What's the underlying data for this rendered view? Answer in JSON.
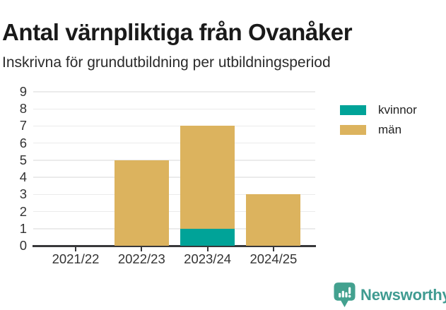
{
  "header": {
    "title": "Antal värnpliktiga från Ovanåker",
    "subtitle": "Inskrivna för grundutbildning per utbildningsperiod"
  },
  "chart_data": {
    "type": "bar",
    "stacked": true,
    "title": "Antal värnpliktiga från Ovanåker",
    "subtitle": "Inskrivna för grundutbildning per utbildningsperiod",
    "categories": [
      "2021/22",
      "2022/23",
      "2023/24",
      "2024/25"
    ],
    "series": [
      {
        "name": "kvinnor",
        "color": "#00A398",
        "values": [
          0,
          0,
          1,
          0
        ]
      },
      {
        "name": "män",
        "color": "#DCB35E",
        "values": [
          0,
          5,
          6,
          3
        ]
      }
    ],
    "totals": [
      0,
      5,
      7,
      3
    ],
    "ylim": [
      0,
      9
    ],
    "yticks": [
      0,
      1,
      2,
      3,
      4,
      5,
      6,
      7,
      8,
      9
    ],
    "xlabel": "",
    "ylabel": "",
    "grid": true,
    "legend_position": "right-top"
  },
  "legend": {
    "items": [
      {
        "label": "kvinnor",
        "color": "#00A398"
      },
      {
        "label": "män",
        "color": "#DCB35E"
      }
    ]
  },
  "footer": {
    "brand": "Newsworthy",
    "brand_color": "#3F9B91",
    "logo_color": "#43A18F"
  }
}
